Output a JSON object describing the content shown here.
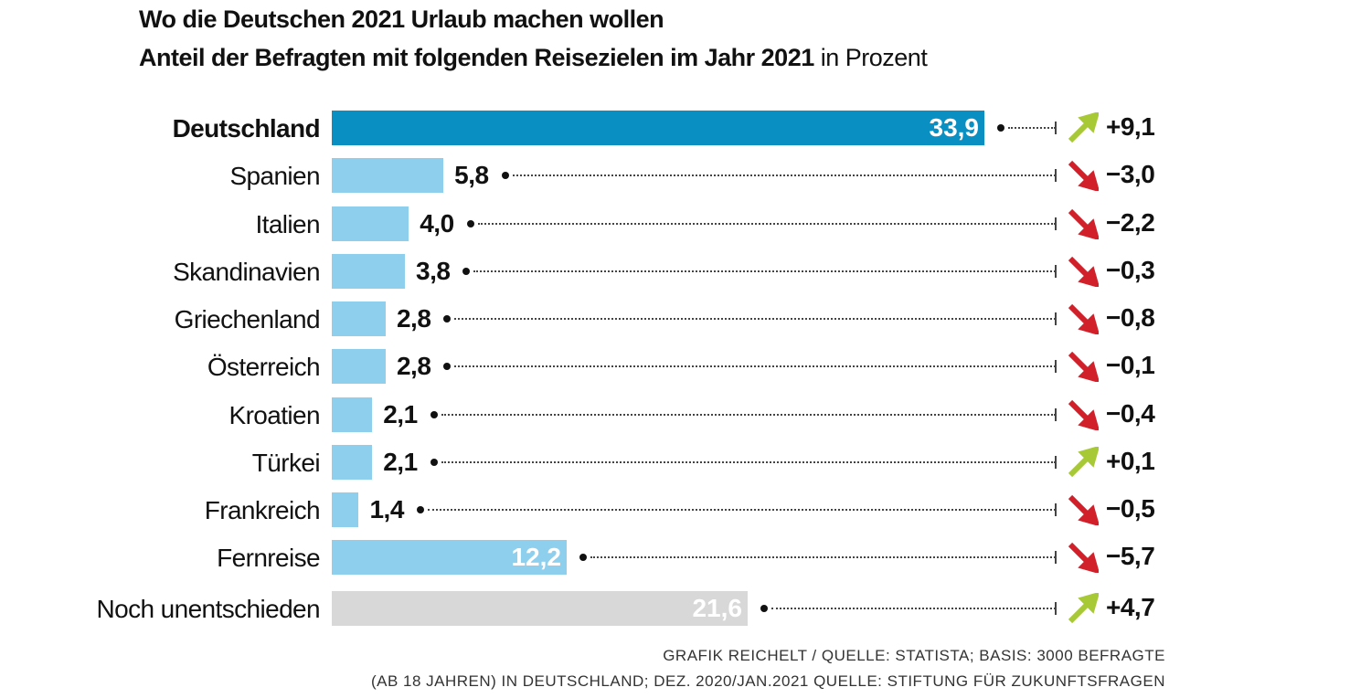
{
  "chart_data": {
    "type": "bar",
    "title": "Wo die Deutschen 2021 Urlaub machen wollen",
    "subtitle": "Anteil der Befragten mit folgenden Reisezielen im Jahr 2021",
    "subtitle_unit": "in Prozent",
    "categories": [
      "Deutschland",
      "Spanien",
      "Italien",
      "Skandinavien",
      "Griechenland",
      "Österreich",
      "Kroatien",
      "Türkei",
      "Frankreich",
      "Fernreise",
      "Noch unentschieden"
    ],
    "values": [
      33.9,
      5.8,
      4.0,
      3.8,
      2.8,
      2.8,
      2.1,
      2.1,
      1.4,
      12.2,
      21.6
    ],
    "value_labels": [
      "33,9",
      "5,8",
      "4,0",
      "3,8",
      "2,8",
      "2,8",
      "2,1",
      "2,1",
      "1,4",
      "12,2",
      "21,6"
    ],
    "colors": [
      "#0a8fc2",
      "#8fcfee",
      "#8fcfee",
      "#8fcfee",
      "#8fcfee",
      "#8fcfee",
      "#8fcfee",
      "#8fcfee",
      "#8fcfee",
      "#8fcfee",
      "#d8d8d8"
    ],
    "changes": [
      9.1,
      -3.0,
      -2.2,
      -0.3,
      -0.8,
      -0.1,
      -0.4,
      0.1,
      -0.5,
      -5.7,
      4.7
    ],
    "change_labels": [
      "+9,1",
      "−3,0",
      "−2,2",
      "−0,3",
      "−0,8",
      "−0,1",
      "−0,4",
      "+0,1",
      "−0,5",
      "−5,7",
      "+4,7"
    ],
    "up_color": "#a8c936",
    "down_color": "#d2202b",
    "source": [
      "GRAFIK REICHELT / QUELLE: STATISTA; BASIS: 3000 BEFRAGTE",
      "(AB 18 JAHREN) IN DEUTSCHLAND; DEZ. 2020/JAN.2021 QUELLE: STIFTUNG FÜR ZUKUNFTSFRAGEN"
    ]
  }
}
